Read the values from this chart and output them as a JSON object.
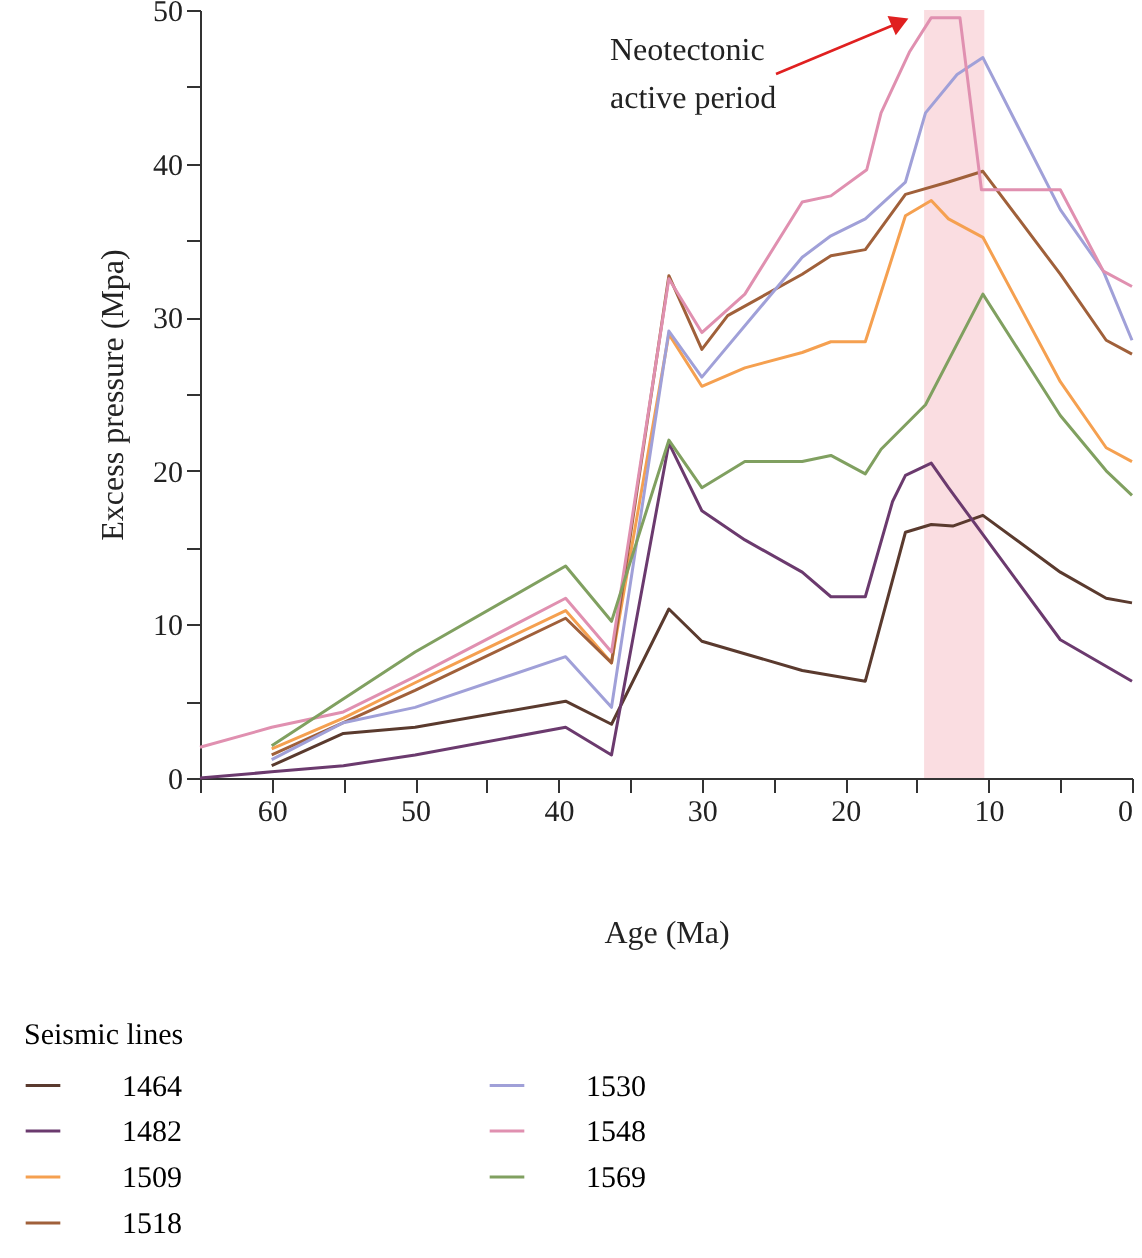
{
  "chart_data": {
    "type": "line",
    "xlabel": "Age (Ma)",
    "ylabel": "Excess pressure (Mpa)",
    "legend_title": "Seismic lines",
    "legend": "bottom",
    "grid": false,
    "marker": "none",
    "line_style": "solid",
    "xlim": [
      65,
      0
    ],
    "ylim": [
      0,
      50
    ],
    "xticks": [
      {
        "value": 65,
        "label": null
      },
      60,
      {
        "value": 55,
        "label": null
      },
      50,
      {
        "value": 45,
        "label": null
      },
      40,
      {
        "value": 35,
        "label": null
      },
      30,
      {
        "value": 25,
        "label": null
      },
      20,
      {
        "value": 15,
        "label": null
      },
      10,
      {
        "value": 5,
        "label": null
      },
      0
    ],
    "yticks": [
      0,
      {
        "value": 5,
        "label": null
      },
      10,
      {
        "value": 15,
        "label": null
      },
      20,
      {
        "value": 25,
        "label": null
      },
      30,
      {
        "value": 35,
        "label": null
      },
      40,
      {
        "value": 45,
        "label": null
      },
      50
    ],
    "bands": [
      {
        "axis": "x",
        "from": 14.5,
        "to": 10.3,
        "label": null,
        "color": "#fadde1"
      }
    ],
    "annotations": [
      "Neotectonic\nactive period"
    ],
    "series": [
      {
        "name": "1464",
        "color": "#5a3a2e",
        "x": [
          60,
          55,
          50,
          39.5,
          36.3,
          32.3,
          30,
          23,
          18.6,
          15.8,
          14,
          12.5,
          10.4,
          5,
          1.8,
          0
        ],
        "values": [
          0.8,
          2.9,
          3.3,
          5.0,
          3.5,
          11.0,
          8.9,
          7.0,
          6.3,
          16.0,
          16.5,
          16.4,
          17.1,
          13.4,
          11.7,
          11.4
        ]
      },
      {
        "name": "1482",
        "color": "#6b3a6e",
        "x": [
          65,
          60,
          55,
          50,
          39.5,
          36.3,
          32.3,
          30,
          27,
          23,
          21,
          18.6,
          16.7,
          15.8,
          14,
          12.8,
          5,
          0
        ],
        "values": [
          0,
          0.4,
          0.8,
          1.5,
          3.3,
          1.5,
          21.8,
          17.4,
          15.5,
          13.4,
          11.8,
          11.8,
          18.0,
          19.7,
          20.5,
          18.9,
          9.0,
          6.3
        ]
      },
      {
        "name": "1509",
        "color": "#f5a050",
        "x": [
          60,
          55,
          50,
          39.5,
          36.3,
          32.3,
          30,
          27,
          23,
          21,
          18.6,
          15.8,
          14,
          12.8,
          10.4,
          5,
          1.8,
          0
        ],
        "values": [
          1.9,
          3.9,
          6.2,
          10.9,
          7.5,
          28.9,
          25.5,
          26.7,
          27.7,
          28.4,
          28.4,
          36.6,
          37.6,
          36.4,
          35.2,
          25.8,
          21.5,
          20.6
        ]
      },
      {
        "name": "1518",
        "color": "#a0603a",
        "x": [
          60,
          55,
          50,
          39.5,
          36.3,
          32.3,
          30,
          28.2,
          23,
          21,
          18.6,
          15.8,
          12.8,
          10.4,
          5,
          1.8,
          0
        ],
        "values": [
          1.5,
          3.6,
          5.7,
          10.4,
          7.5,
          32.7,
          27.9,
          30.1,
          32.8,
          34.0,
          34.4,
          38.0,
          38.8,
          39.5,
          32.8,
          28.5,
          27.6
        ]
      },
      {
        "name": "1530",
        "color": "#a0a0d8",
        "x": [
          60,
          55,
          50,
          39.5,
          36.3,
          32.3,
          30,
          23,
          21,
          18.6,
          15.8,
          14.4,
          12.2,
          10.4,
          5,
          2,
          0
        ],
        "values": [
          1.2,
          3.6,
          4.6,
          7.9,
          4.6,
          29.1,
          26.1,
          33.9,
          35.3,
          36.4,
          38.8,
          43.3,
          45.8,
          46.9,
          37.0,
          33.0,
          28.5
        ]
      },
      {
        "name": "1548",
        "color": "#e090b0",
        "x": [
          65,
          60,
          55,
          50,
          39.5,
          36.3,
          32.3,
          30,
          27,
          23,
          21,
          18.5,
          17.5,
          15.5,
          14,
          12,
          10.5,
          5,
          2,
          0
        ],
        "values": [
          2.0,
          3.3,
          4.3,
          6.6,
          11.7,
          8.2,
          32.5,
          29.0,
          31.5,
          37.5,
          37.9,
          39.6,
          43.3,
          47.3,
          49.5,
          49.5,
          38.3,
          38.3,
          33.0,
          32.0
        ]
      },
      {
        "name": "1569",
        "color": "#80a060",
        "x": [
          60,
          50,
          39.5,
          36.3,
          32.3,
          30,
          27,
          23,
          21,
          18.6,
          17.5,
          14.4,
          10.4,
          5,
          1.8,
          0
        ],
        "values": [
          2.1,
          8.2,
          13.8,
          10.2,
          22.0,
          18.9,
          20.6,
          20.6,
          21.0,
          19.8,
          21.4,
          24.3,
          31.5,
          23.6,
          20.0,
          18.4
        ]
      }
    ]
  }
}
